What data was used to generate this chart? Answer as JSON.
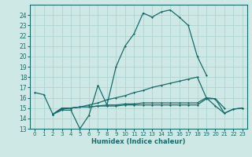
{
  "xlabel": "Humidex (Indice chaleur)",
  "xlim": [
    -0.5,
    23.5
  ],
  "ylim": [
    13,
    25
  ],
  "yticks": [
    13,
    14,
    15,
    16,
    17,
    18,
    19,
    20,
    21,
    22,
    23,
    24
  ],
  "xticks": [
    0,
    1,
    2,
    3,
    4,
    5,
    6,
    7,
    8,
    9,
    10,
    11,
    12,
    13,
    14,
    15,
    16,
    17,
    18,
    19,
    20,
    21,
    22,
    23
  ],
  "bg_color": "#cde8e5",
  "grid_color": "#afd4d0",
  "line_color": "#1a6b6b",
  "series": [
    {
      "x": [
        0,
        1,
        2,
        3,
        4,
        5,
        6,
        7,
        8,
        9,
        10,
        11,
        12,
        13,
        14,
        15,
        16,
        17,
        18,
        19,
        20,
        21
      ],
      "y": [
        16.5,
        16.3,
        14.4,
        14.8,
        14.8,
        13.0,
        14.3,
        17.2,
        15.3,
        19.0,
        21.0,
        22.2,
        24.2,
        23.8,
        24.3,
        24.5,
        23.8,
        23.0,
        20.0,
        18.2,
        null,
        null
      ]
    },
    {
      "x": [
        0,
        1,
        2,
        3,
        4,
        5,
        6,
        7,
        8,
        9,
        10,
        11,
        12,
        13,
        14,
        15,
        16,
        17,
        18,
        19,
        20,
        21,
        22,
        23
      ],
      "y": [
        null,
        null,
        14.4,
        14.9,
        15.0,
        15.1,
        15.3,
        15.5,
        15.8,
        16.0,
        16.2,
        16.5,
        16.7,
        17.0,
        17.2,
        17.4,
        17.6,
        17.8,
        18.0,
        16.0,
        15.9,
        15.0,
        null,
        null
      ]
    },
    {
      "x": [
        0,
        1,
        2,
        3,
        4,
        5,
        6,
        7,
        8,
        9,
        10,
        11,
        12,
        13,
        14,
        15,
        16,
        17,
        18,
        19,
        20,
        21,
        22,
        23
      ],
      "y": [
        null,
        null,
        14.4,
        15.0,
        15.0,
        15.1,
        15.1,
        15.2,
        15.2,
        15.2,
        15.3,
        15.3,
        15.3,
        15.3,
        15.3,
        15.3,
        15.3,
        15.3,
        15.3,
        15.9,
        15.9,
        14.5,
        14.9,
        15.0
      ]
    },
    {
      "x": [
        0,
        1,
        2,
        3,
        4,
        5,
        6,
        7,
        8,
        9,
        10,
        11,
        12,
        13,
        14,
        15,
        16,
        17,
        18,
        19,
        20,
        21,
        22,
        23
      ],
      "y": [
        null,
        null,
        14.4,
        15.0,
        15.0,
        15.1,
        15.1,
        15.2,
        15.3,
        15.3,
        15.4,
        15.4,
        15.5,
        15.5,
        15.5,
        15.5,
        15.5,
        15.5,
        15.5,
        16.0,
        15.2,
        14.5,
        14.9,
        15.0
      ]
    }
  ]
}
